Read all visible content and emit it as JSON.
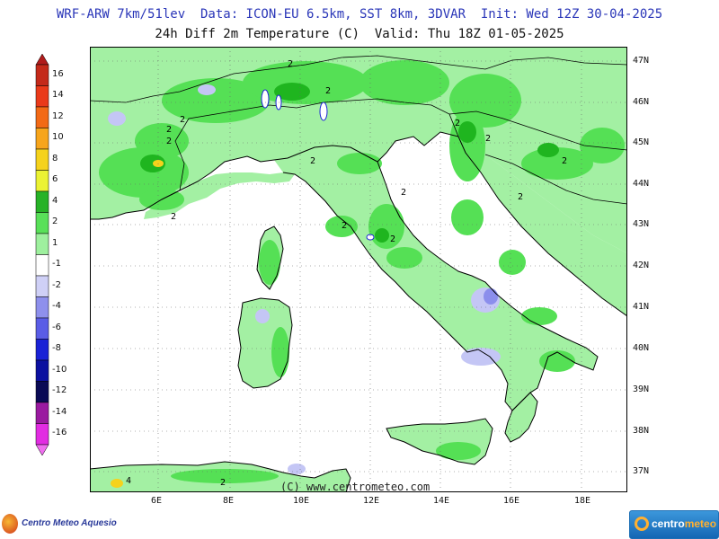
{
  "header": {
    "title_line1": "WRF-ARW 7km/51lev  Data: ICON-EU 6.5km, SST 8km, 3DVAR  Init: Wed 12Z 30-04-2025",
    "title_line2": "24h Diff 2m Temperature (C)  Valid: Thu 18Z 01-05-2025"
  },
  "map": {
    "lat_labels": [
      "47N",
      "46N",
      "45N",
      "44N",
      "43N",
      "42N",
      "41N",
      "40N",
      "39N",
      "38N",
      "37N"
    ],
    "lon_labels": [
      "6E",
      "8E",
      "10E",
      "12E",
      "14E",
      "16E",
      "18E"
    ],
    "copyright": "(C) www.centrometeo.com",
    "contour_label": "2",
    "contour_label_alt": "4",
    "colors": {
      "land_base": "#a3f0a3",
      "green_light": "#55e055",
      "green_dark": "#1fb51f",
      "sea": "#ffffff",
      "blue_light": "#c4c6f5",
      "blue_mid": "#8b8eec",
      "coast": "#000000"
    }
  },
  "legend": {
    "labels": [
      "16",
      "14",
      "12",
      "10",
      "8",
      "6",
      "4",
      "2",
      "1",
      "-1",
      "-2",
      "-4",
      "-6",
      "-8",
      "-10",
      "-12",
      "-14",
      "-16"
    ],
    "colors": [
      "#b01c1c",
      "#c42a1a",
      "#ea3a1a",
      "#f26a16",
      "#f7a51c",
      "#f5d21c",
      "#ebf233",
      "#27b227",
      "#59e059",
      "#9ef09e",
      "#ffffff",
      "#cfd0f6",
      "#8e90ec",
      "#5a5de6",
      "#1a22d6",
      "#0c10a0",
      "#0a0a55",
      "#9a1aa0",
      "#e22ce2",
      "#f06ef0"
    ]
  },
  "branding": {
    "left_logo": "Centro Meteo Aquesio",
    "right_logo_part1": "centro",
    "right_logo_part2": "meteo"
  }
}
